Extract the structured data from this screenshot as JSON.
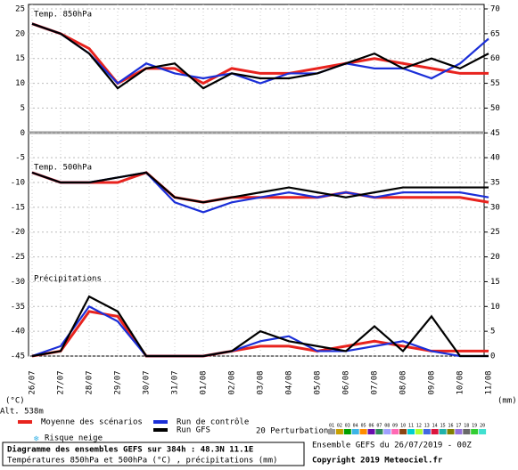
{
  "chart_data": {
    "type": "line",
    "panel_labels": [
      "Temp. 850hPa",
      "Temp. 500hPa",
      "Précipitations"
    ],
    "categories": [
      "26/07",
      "27/07",
      "28/07",
      "29/07",
      "30/07",
      "31/07",
      "01/08",
      "02/08",
      "03/08",
      "04/08",
      "05/08",
      "06/08",
      "07/08",
      "08/08",
      "09/08",
      "10/08",
      "11/08"
    ],
    "ylim": [
      -45,
      25
    ],
    "yticks": [
      -45,
      -40,
      -35,
      -30,
      -25,
      -20,
      -15,
      -10,
      -5,
      0,
      5,
      10,
      15,
      20,
      25
    ],
    "y2lim": [
      0,
      70
    ],
    "y2ticks": [
      0,
      5,
      10,
      15,
      20,
      25,
      30,
      35,
      40,
      45,
      50,
      55,
      60,
      65,
      70
    ],
    "ylabel": "(°C)",
    "y2label": "(mm)",
    "grid": true,
    "series": [
      {
        "name": "Moyenne des scénarios",
        "color": "#e8231e",
        "t850": [
          22,
          20,
          17,
          10,
          13,
          13,
          10,
          13,
          12,
          12,
          13,
          14,
          15,
          14,
          13,
          12,
          12
        ],
        "t500": [
          -8,
          -10,
          -10,
          -10,
          -8,
          -13,
          -14,
          -13,
          -13,
          -13,
          -13,
          -12,
          -13,
          -13,
          -13,
          -13,
          -14
        ],
        "precip": [
          0,
          1,
          9,
          8,
          0,
          0,
          0,
          1,
          2,
          2,
          1,
          2,
          3,
          2,
          1,
          1,
          1
        ]
      },
      {
        "name": "Run de contrôle",
        "color": "#1b2fd8",
        "t850": [
          22,
          20,
          16,
          10,
          14,
          12,
          11,
          12,
          10,
          12,
          12,
          14,
          13,
          13,
          11,
          14,
          19
        ],
        "t500": [
          -8,
          -10,
          -10,
          -9,
          -8,
          -14,
          -16,
          -14,
          -13,
          -12,
          -13,
          -12,
          -13,
          -12,
          -12,
          -12,
          -13
        ],
        "precip": [
          0,
          2,
          10,
          7,
          0,
          0,
          0,
          1,
          3,
          4,
          1,
          1,
          2,
          3,
          1,
          0,
          0
        ]
      },
      {
        "name": "Run GFS",
        "color": "#000000",
        "t850": [
          22,
          20,
          16,
          9,
          13,
          14,
          9,
          12,
          11,
          11,
          12,
          14,
          16,
          13,
          15,
          13,
          16
        ],
        "t500": [
          -8,
          -10,
          -10,
          -9,
          -8,
          -13,
          -14,
          -13,
          -12,
          -11,
          -12,
          -13,
          -12,
          -11,
          -11,
          -11,
          -11
        ],
        "precip": [
          0,
          1,
          12,
          9,
          0,
          0,
          0,
          1,
          5,
          3,
          2,
          1,
          6,
          1,
          8,
          0,
          0
        ]
      }
    ],
    "perturbations": {
      "label": "20 Perturbations",
      "members": [
        {
          "name": "01",
          "color": "#9a9a9a"
        },
        {
          "name": "02",
          "color": "#c8a000"
        },
        {
          "name": "03",
          "color": "#00a000"
        },
        {
          "name": "04",
          "color": "#3cb4e6"
        },
        {
          "name": "05",
          "color": "#ff8c00"
        },
        {
          "name": "06",
          "color": "#6a0dad"
        },
        {
          "name": "07",
          "color": "#2e8b57"
        },
        {
          "name": "08",
          "color": "#a0a0ff"
        },
        {
          "name": "09",
          "color": "#ff69b4"
        },
        {
          "name": "10",
          "color": "#8b4513"
        },
        {
          "name": "11",
          "color": "#00ced1"
        },
        {
          "name": "12",
          "color": "#adff2f"
        },
        {
          "name": "13",
          "color": "#4169e1"
        },
        {
          "name": "14",
          "color": "#dc143c"
        },
        {
          "name": "15",
          "color": "#20b2aa"
        },
        {
          "name": "16",
          "color": "#808000"
        },
        {
          "name": "17",
          "color": "#9370db"
        },
        {
          "name": "18",
          "color": "#696969"
        },
        {
          "name": "19",
          "color": "#32cd32"
        },
        {
          "name": "20",
          "color": "#40e0d0"
        }
      ]
    },
    "altitude": "Alt. 538m",
    "snow_label": "Risque neige",
    "footer_title": "Diagramme des ensembles GEFS sur 384h : 48.3N 11.1E",
    "footer_subtitle": "Températures 850hPa et 500hPa (°C) , précipitations (mm)",
    "run_info": "Ensemble GEFS du 26/07/2019 - 00Z",
    "copyright": "Copyright 2019 Meteociel.fr"
  }
}
